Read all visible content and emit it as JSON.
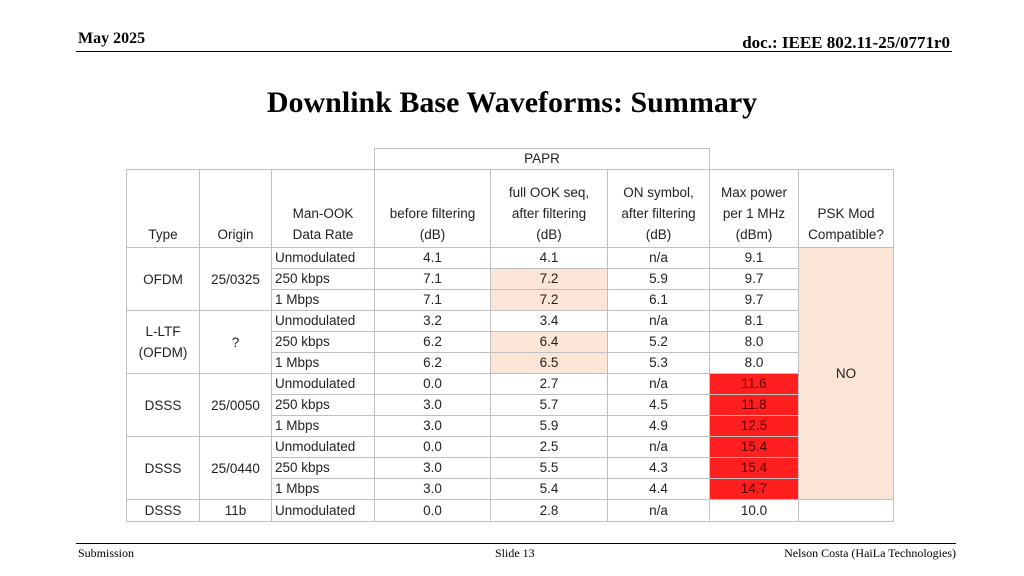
{
  "header": {
    "date": "May 2025",
    "doc": "doc.: IEEE 802.11-25/0771r0"
  },
  "title": "Downlink Base Waveforms: Summary",
  "table": {
    "super_header": "PAPR",
    "col_headers": {
      "type": "Type",
      "origin": "Origin",
      "rate": [
        "Man-OOK",
        "Data Rate"
      ],
      "before": [
        "before filtering",
        "(dB)"
      ],
      "full": [
        "full OOK seq,",
        "after filtering",
        "(dB)"
      ],
      "on": [
        "ON symbol,",
        "after filtering",
        "(dB)"
      ],
      "power": [
        "Max power",
        "per 1 MHz",
        "(dBm)"
      ],
      "psk": [
        "PSK Mod",
        "Compatible?"
      ]
    },
    "groups": [
      {
        "type": [
          "OFDM"
        ],
        "origin": "25/0325",
        "rows": [
          {
            "rate": "Unmodulated",
            "before": "4.1",
            "full": "4.1",
            "on": "n/a",
            "power": "9.1",
            "full_hl": false,
            "power_hl": false
          },
          {
            "rate": "250 kbps",
            "before": "7.1",
            "full": "7.2",
            "on": "5.9",
            "power": "9.7",
            "full_hl": true,
            "power_hl": false
          },
          {
            "rate": "1 Mbps",
            "before": "7.1",
            "full": "7.2",
            "on": "6.1",
            "power": "9.7",
            "full_hl": true,
            "power_hl": false
          }
        ]
      },
      {
        "type": [
          "L-LTF",
          "(OFDM)"
        ],
        "origin": "?",
        "rows": [
          {
            "rate": "Unmodulated",
            "before": "3.2",
            "full": "3.4",
            "on": "n/a",
            "power": "8.1",
            "full_hl": false,
            "power_hl": false
          },
          {
            "rate": "250 kbps",
            "before": "6.2",
            "full": "6.4",
            "on": "5.2",
            "power": "8.0",
            "full_hl": true,
            "power_hl": false
          },
          {
            "rate": "1 Mbps",
            "before": "6.2",
            "full": "6.5",
            "on": "5.3",
            "power": "8.0",
            "full_hl": true,
            "power_hl": false
          }
        ]
      },
      {
        "type": [
          "DSSS"
        ],
        "origin": "25/0050",
        "rows": [
          {
            "rate": "Unmodulated",
            "before": "0.0",
            "full": "2.7",
            "on": "n/a",
            "power": "11.6",
            "full_hl": false,
            "power_hl": true
          },
          {
            "rate": "250 kbps",
            "before": "3.0",
            "full": "5.7",
            "on": "4.5",
            "power": "11.8",
            "full_hl": false,
            "power_hl": true
          },
          {
            "rate": "1 Mbps",
            "before": "3.0",
            "full": "5.9",
            "on": "4.9",
            "power": "12.5",
            "full_hl": false,
            "power_hl": true
          }
        ]
      },
      {
        "type": [
          "DSSS"
        ],
        "origin": "25/0440",
        "rows": [
          {
            "rate": "Unmodulated",
            "before": "0.0",
            "full": "2.5",
            "on": "n/a",
            "power": "15.4",
            "full_hl": false,
            "power_hl": true
          },
          {
            "rate": "250 kbps",
            "before": "3.0",
            "full": "5.5",
            "on": "4.3",
            "power": "15.4",
            "full_hl": false,
            "power_hl": true
          },
          {
            "rate": "1 Mbps",
            "before": "3.0",
            "full": "5.4",
            "on": "4.4",
            "power": "14.7",
            "full_hl": false,
            "power_hl": true
          }
        ]
      },
      {
        "type": [
          "DSSS"
        ],
        "origin": "11b",
        "rows": [
          {
            "rate": "Unmodulated",
            "before": "0.0",
            "full": "2.8",
            "on": "n/a",
            "power": "10.0",
            "full_hl": false,
            "power_hl": false
          }
        ]
      }
    ],
    "psk_value": "NO",
    "colors": {
      "peach": "#fbe5d6",
      "red": "#ff1f1f"
    }
  },
  "footer": {
    "left": "Submission",
    "center": "Slide 13",
    "right": "Nelson Costa (HaiLa Technologies)"
  }
}
